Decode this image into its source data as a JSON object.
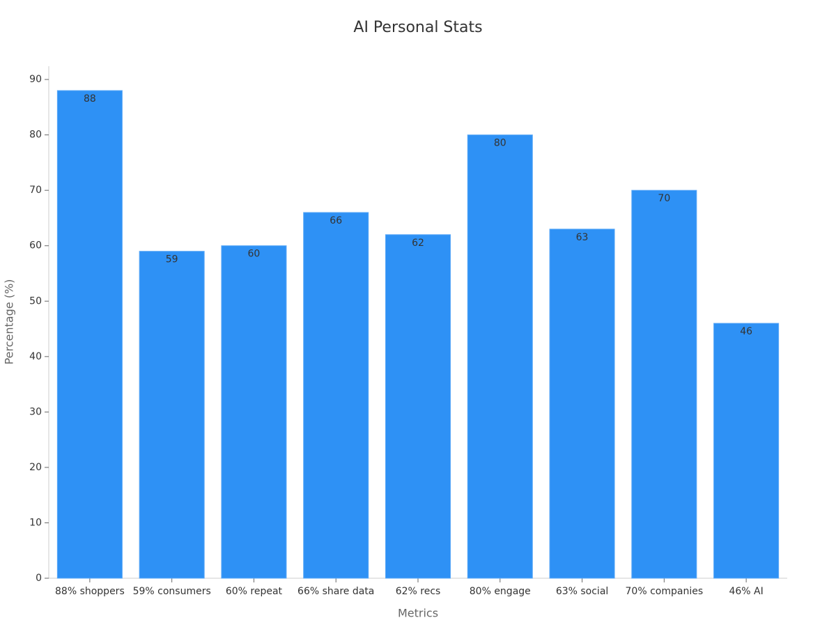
{
  "chart_data": {
    "type": "bar",
    "title": "AI Personal Stats",
    "x_label": "Metrics",
    "y_label": "Percentage (%)",
    "categories": [
      "88% shoppers",
      "59% consumers",
      "60% repeat",
      "66% share data",
      "62% recs",
      "80% engage",
      "63% social",
      "70% companies",
      "46% AI"
    ],
    "values": [
      88,
      59,
      60,
      66,
      62,
      80,
      63,
      70,
      46
    ],
    "color": "#2e91f5",
    "ylim": [
      0,
      92.4
    ],
    "yticks": [
      0,
      10,
      20,
      30,
      40,
      50,
      60,
      70,
      80,
      90
    ],
    "grid": false
  }
}
